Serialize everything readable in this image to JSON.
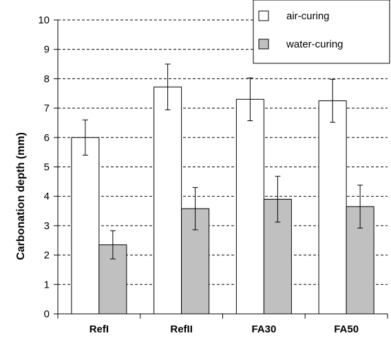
{
  "chart_data": {
    "type": "bar",
    "categories": [
      "RefI",
      "RefII",
      "FA30",
      "FA50"
    ],
    "series": [
      {
        "name": "air-curing",
        "color": "#ffffff",
        "values": [
          6.0,
          7.72,
          7.3,
          7.25
        ],
        "error": [
          0.6,
          0.78,
          0.73,
          0.73
        ]
      },
      {
        "name": "water-curing",
        "color": "#c0c0c0",
        "values": [
          2.35,
          3.58,
          3.9,
          3.65
        ],
        "error": [
          0.48,
          0.72,
          0.78,
          0.73
        ]
      }
    ],
    "xlabel": "",
    "ylabel": "Carbonation depth (mm)",
    "ylim": [
      0,
      10
    ],
    "yticks": [
      "0",
      "1",
      "2",
      "3",
      "4",
      "5",
      "6",
      "7",
      "8",
      "9",
      "10"
    ],
    "grid": "horizontal dashed",
    "legend_position": "top-right"
  }
}
